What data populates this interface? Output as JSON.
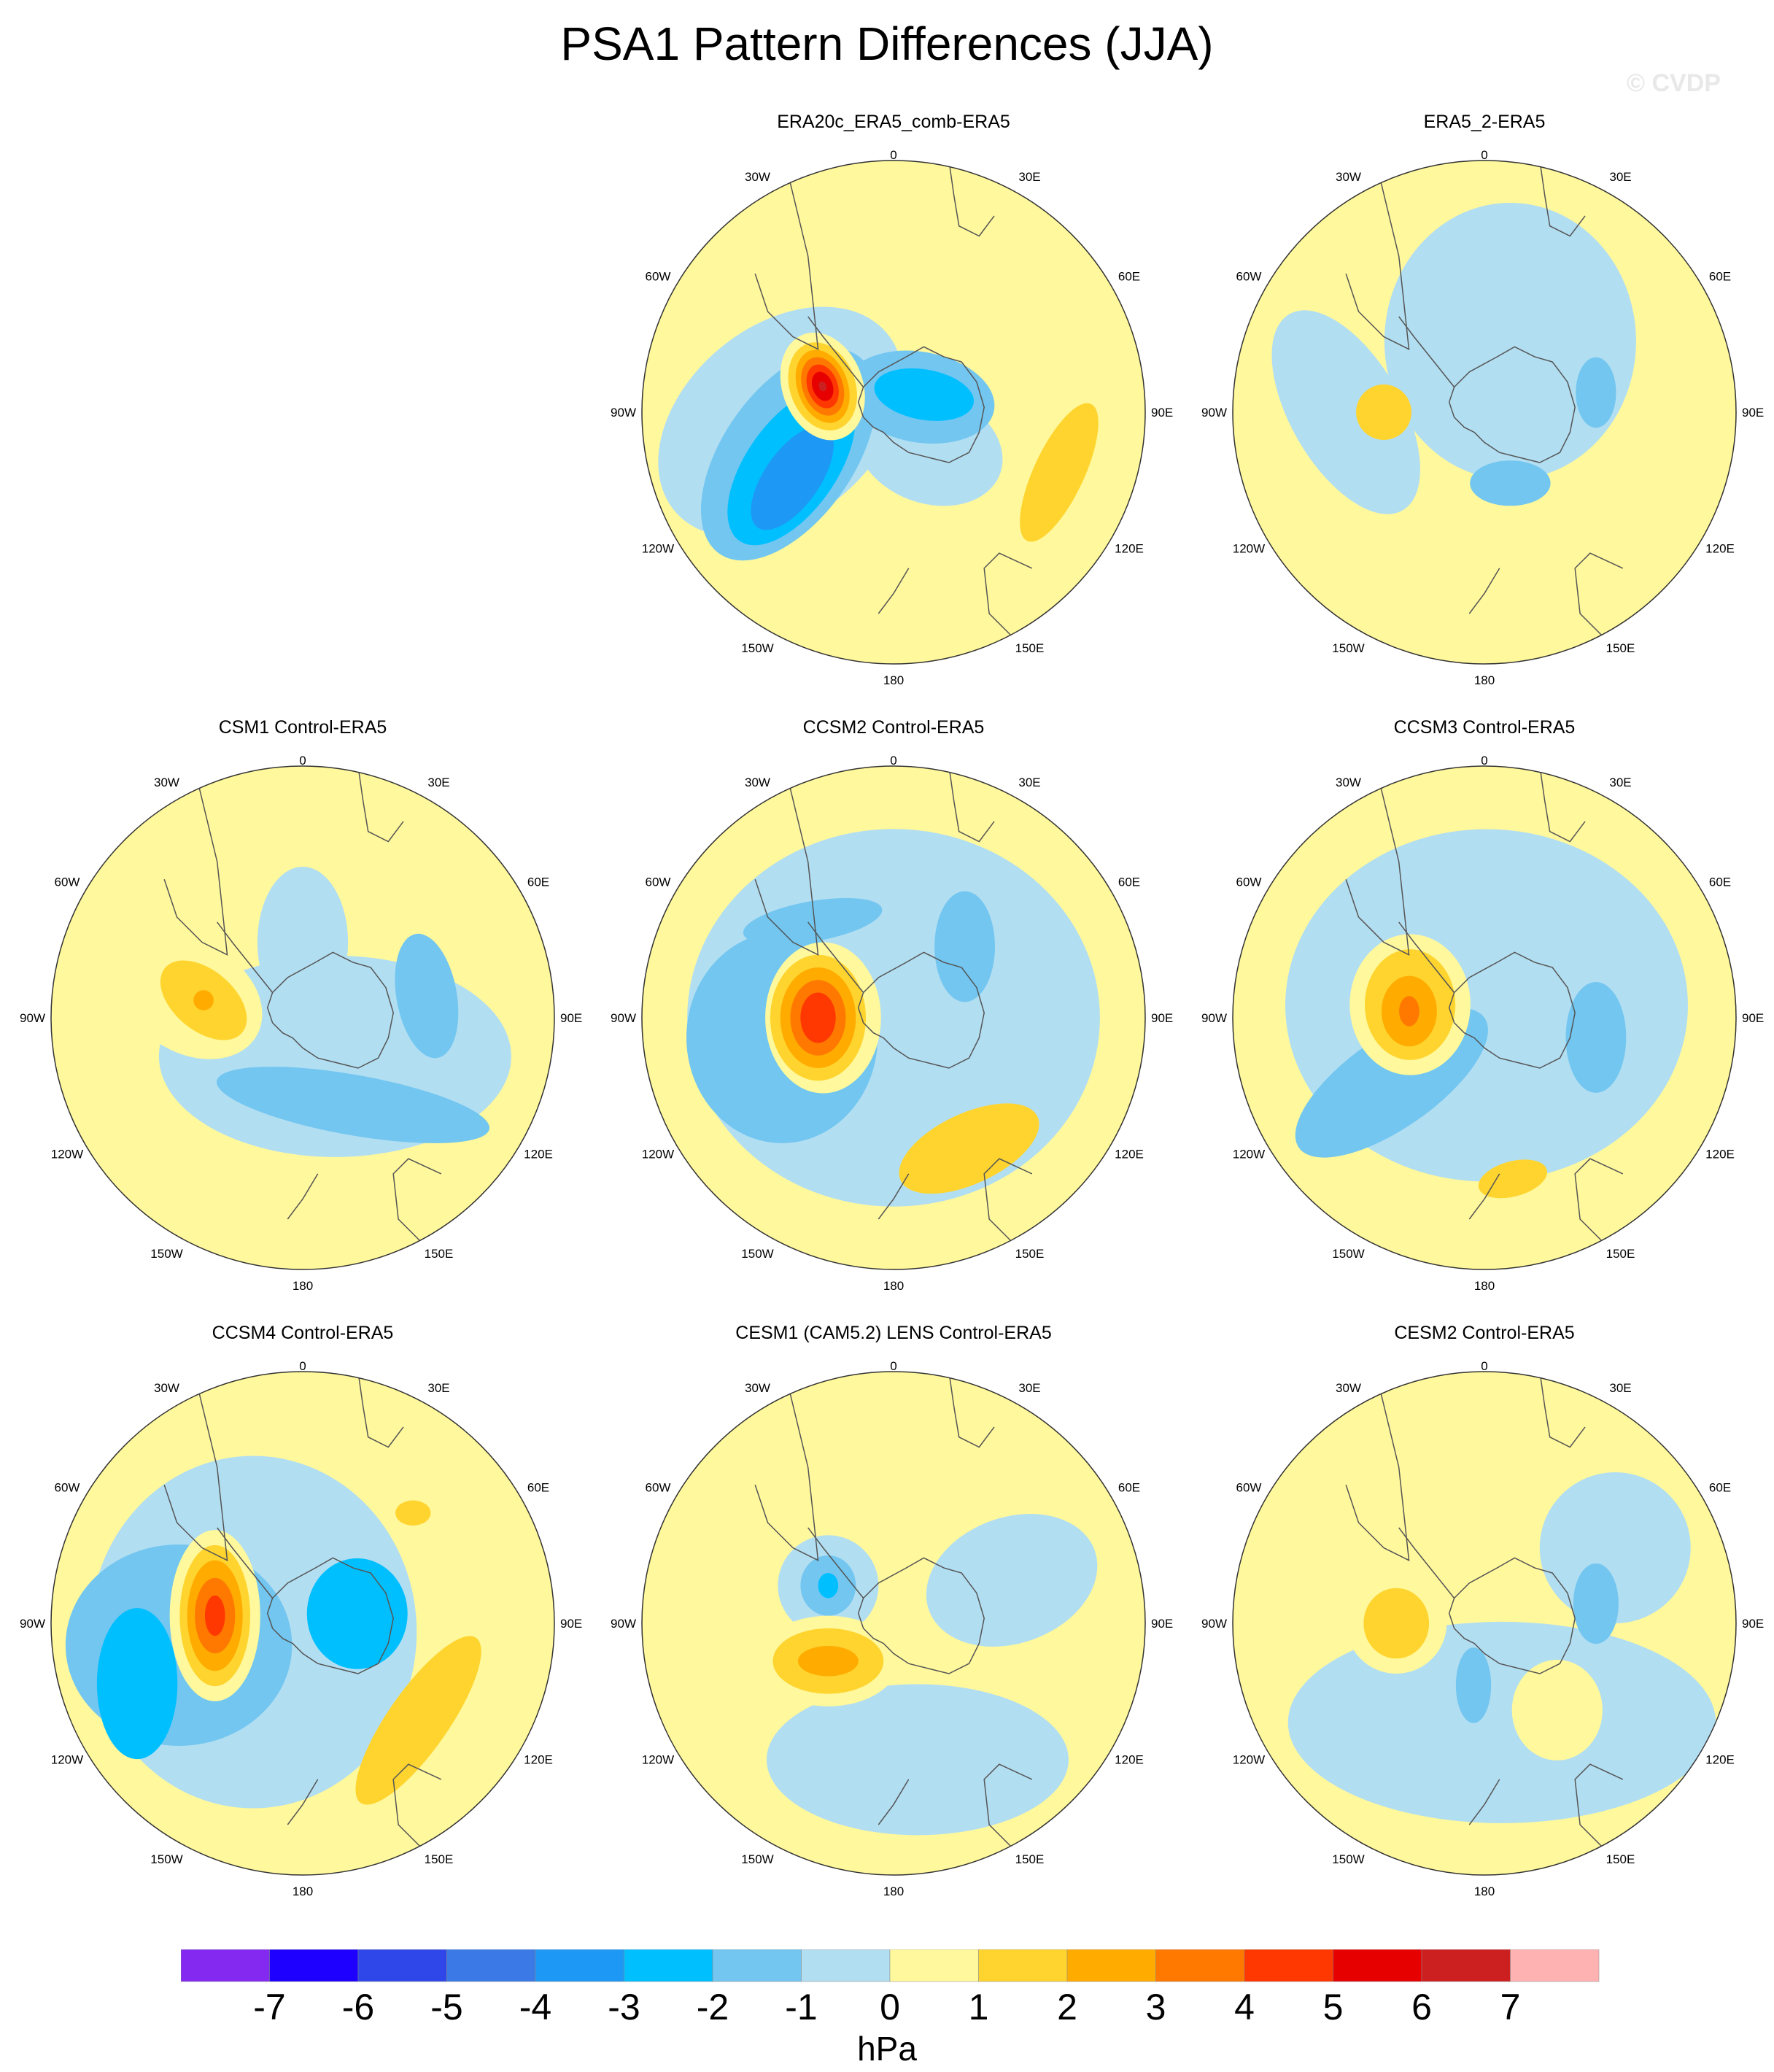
{
  "title": "PSA1 Pattern Differences (JJA)",
  "watermark": "© CVDP",
  "units": "hPa",
  "lon_labels": [
    "0",
    "30E",
    "60E",
    "90E",
    "120E",
    "150E",
    "180",
    "150W",
    "120W",
    "90W",
    "60W",
    "30W"
  ],
  "panels": [
    {
      "name": "panel-era20c-era5-comb",
      "title": "ERA20c_ERA5_comb-ERA5",
      "features": [
        {
          "type": "blob",
          "level": -1,
          "a": -95,
          "r": 0.45,
          "rx": 0.55,
          "ry": 0.38,
          "rot": -40
        },
        {
          "type": "blob",
          "level": -1,
          "a": 135,
          "r": 0.2,
          "rx": 0.3,
          "ry": 0.22,
          "rot": 20
        },
        {
          "type": "blob",
          "level": -2,
          "a": -112,
          "r": 0.45,
          "rx": 0.48,
          "ry": 0.26,
          "rot": -55
        },
        {
          "type": "blob",
          "level": -3,
          "a": -118,
          "r": 0.46,
          "rx": 0.36,
          "ry": 0.18,
          "rot": -55
        },
        {
          "type": "blob",
          "level": -4,
          "a": -123,
          "r": 0.48,
          "rx": 0.24,
          "ry": 0.11,
          "rot": -55
        },
        {
          "type": "blob",
          "level": -2,
          "a": 60,
          "r": 0.12,
          "rx": 0.3,
          "ry": 0.18,
          "rot": 10
        },
        {
          "type": "blob",
          "level": -3,
          "a": 60,
          "r": 0.14,
          "rx": 0.2,
          "ry": 0.1,
          "rot": 10
        },
        {
          "type": "blob",
          "level": 1,
          "a": -70,
          "r": 0.3,
          "rx": 0.22,
          "ry": 0.16,
          "rot": 70
        },
        {
          "type": "blob",
          "level": 2,
          "a": -70,
          "r": 0.3,
          "rx": 0.18,
          "ry": 0.13,
          "rot": 70
        },
        {
          "type": "blob",
          "level": 3,
          "a": -70,
          "r": 0.3,
          "rx": 0.15,
          "ry": 0.1,
          "rot": 70
        },
        {
          "type": "blob",
          "level": 4,
          "a": -70,
          "r": 0.3,
          "rx": 0.12,
          "ry": 0.08,
          "rot": 70
        },
        {
          "type": "blob",
          "level": 5,
          "a": -70,
          "r": 0.3,
          "rx": 0.09,
          "ry": 0.06,
          "rot": 70
        },
        {
          "type": "blob",
          "level": 6,
          "a": -70,
          "r": 0.3,
          "rx": 0.06,
          "ry": 0.04,
          "rot": 70
        },
        {
          "type": "blob",
          "level": 7,
          "a": -70,
          "r": 0.3,
          "rx": 0.02,
          "ry": 0.015,
          "rot": 70
        },
        {
          "type": "blob",
          "level": 2,
          "a": 110,
          "r": 0.7,
          "rx": 0.3,
          "ry": 0.1,
          "rot": -65
        }
      ]
    },
    {
      "name": "panel-era5-2",
      "title": "ERA5_2-ERA5",
      "features": [
        {
          "type": "blob",
          "level": -1,
          "a": 20,
          "r": 0.3,
          "rx": 0.5,
          "ry": 0.55,
          "rot": 0
        },
        {
          "type": "blob",
          "level": -1,
          "a": -90,
          "r": 0.55,
          "rx": 0.45,
          "ry": 0.22,
          "rot": 60
        },
        {
          "type": "blob",
          "level": -2,
          "a": 80,
          "r": 0.45,
          "rx": 0.08,
          "ry": 0.14,
          "rot": 0
        },
        {
          "type": "blob",
          "level": -2,
          "a": 160,
          "r": 0.3,
          "rx": 0.16,
          "ry": 0.09,
          "rot": 0
        },
        {
          "type": "blob",
          "level": 2,
          "a": -90,
          "r": 0.4,
          "rx": 0.11,
          "ry": 0.11,
          "rot": 0
        }
      ]
    },
    {
      "name": "panel-csm1",
      "title": "CSM1 Control-ERA5",
      "features": [
        {
          "type": "blob",
          "level": -1,
          "a": 140,
          "r": 0.2,
          "rx": 0.7,
          "ry": 0.4,
          "rot": 0
        },
        {
          "type": "blob",
          "level": -1,
          "a": 0,
          "r": 0.3,
          "rx": 0.18,
          "ry": 0.3,
          "rot": 0
        },
        {
          "type": "blob",
          "level": -2,
          "a": 150,
          "r": 0.4,
          "rx": 0.55,
          "ry": 0.12,
          "rot": 10
        },
        {
          "type": "blob",
          "level": -2,
          "a": 80,
          "r": 0.5,
          "rx": 0.12,
          "ry": 0.25,
          "rot": -10
        },
        {
          "type": "blob",
          "level": 1,
          "a": -80,
          "r": 0.45,
          "rx": 0.3,
          "ry": 0.22,
          "rot": 30
        },
        {
          "type": "blob",
          "level": 2,
          "a": -80,
          "r": 0.4,
          "rx": 0.2,
          "ry": 0.12,
          "rot": 40
        },
        {
          "type": "blob",
          "level": 3,
          "a": -80,
          "r": 0.4,
          "rx": 0.04,
          "ry": 0.04,
          "rot": 0
        }
      ]
    },
    {
      "name": "panel-ccsm2",
      "title": "CCSM2 Control-ERA5",
      "features": [
        {
          "type": "blob",
          "level": -1,
          "a": 0,
          "r": 0.0,
          "rx": 0.82,
          "ry": 0.75,
          "rot": 0
        },
        {
          "type": "blob",
          "level": -2,
          "a": -100,
          "r": 0.45,
          "rx": 0.38,
          "ry": 0.42,
          "rot": 0
        },
        {
          "type": "blob",
          "level": -2,
          "a": 45,
          "r": 0.4,
          "rx": 0.12,
          "ry": 0.22,
          "rot": 0
        },
        {
          "type": "blob",
          "level": -2,
          "a": -40,
          "r": 0.5,
          "rx": 0.28,
          "ry": 0.08,
          "rot": -10
        },
        {
          "type": "blob",
          "level": 1,
          "a": -90,
          "r": 0.28,
          "rx": 0.23,
          "ry": 0.3,
          "rot": 0
        },
        {
          "type": "blob",
          "level": 2,
          "a": -90,
          "r": 0.3,
          "rx": 0.19,
          "ry": 0.25,
          "rot": 0
        },
        {
          "type": "blob",
          "level": 3,
          "a": -90,
          "r": 0.3,
          "rx": 0.15,
          "ry": 0.2,
          "rot": 0
        },
        {
          "type": "blob",
          "level": 4,
          "a": -90,
          "r": 0.3,
          "rx": 0.11,
          "ry": 0.15,
          "rot": 0
        },
        {
          "type": "blob",
          "level": 5,
          "a": -90,
          "r": 0.3,
          "rx": 0.07,
          "ry": 0.1,
          "rot": 0
        },
        {
          "type": "blob",
          "level": 2,
          "a": 150,
          "r": 0.6,
          "rx": 0.3,
          "ry": 0.14,
          "rot": -25
        }
      ]
    },
    {
      "name": "panel-ccsm3",
      "title": "CCSM3 Control-ERA5",
      "features": [
        {
          "type": "blob",
          "level": -1,
          "a": 10,
          "r": 0.05,
          "rx": 0.8,
          "ry": 0.7,
          "rot": 0
        },
        {
          "type": "blob",
          "level": -2,
          "a": -125,
          "r": 0.45,
          "rx": 0.45,
          "ry": 0.18,
          "rot": -35
        },
        {
          "type": "blob",
          "level": -2,
          "a": 100,
          "r": 0.45,
          "rx": 0.12,
          "ry": 0.22,
          "rot": 0
        },
        {
          "type": "blob",
          "level": 1,
          "a": -80,
          "r": 0.3,
          "rx": 0.24,
          "ry": 0.28,
          "rot": 0
        },
        {
          "type": "blob",
          "level": 2,
          "a": -80,
          "r": 0.3,
          "rx": 0.18,
          "ry": 0.22,
          "rot": 0
        },
        {
          "type": "blob",
          "level": 3,
          "a": -85,
          "r": 0.3,
          "rx": 0.11,
          "ry": 0.14,
          "rot": 0
        },
        {
          "type": "blob",
          "level": 4,
          "a": -85,
          "r": 0.3,
          "rx": 0.04,
          "ry": 0.06,
          "rot": 0
        },
        {
          "type": "blob",
          "level": 2,
          "a": 170,
          "r": 0.65,
          "rx": 0.14,
          "ry": 0.07,
          "rot": -15
        }
      ]
    },
    {
      "name": "panel-ccsm4",
      "title": "CCSM4 Control-ERA5",
      "features": [
        {
          "type": "blob",
          "level": -1,
          "a": -100,
          "r": 0.2,
          "rx": 0.65,
          "ry": 0.7,
          "rot": 0
        },
        {
          "type": "blob",
          "level": -2,
          "a": -100,
          "r": 0.5,
          "rx": 0.45,
          "ry": 0.4,
          "rot": 0
        },
        {
          "type": "blob",
          "level": -3,
          "a": -110,
          "r": 0.7,
          "rx": 0.16,
          "ry": 0.3,
          "rot": 0
        },
        {
          "type": "blob",
          "level": -3,
          "a": 80,
          "r": 0.22,
          "rx": 0.2,
          "ry": 0.22,
          "rot": 0
        },
        {
          "type": "blob",
          "level": 1,
          "a": -85,
          "r": 0.35,
          "rx": 0.18,
          "ry": 0.34,
          "rot": 0
        },
        {
          "type": "blob",
          "level": 2,
          "a": -85,
          "r": 0.35,
          "rx": 0.14,
          "ry": 0.28,
          "rot": 0
        },
        {
          "type": "blob",
          "level": 3,
          "a": -85,
          "r": 0.35,
          "rx": 0.11,
          "ry": 0.22,
          "rot": 0
        },
        {
          "type": "blob",
          "level": 4,
          "a": -85,
          "r": 0.35,
          "rx": 0.08,
          "ry": 0.15,
          "rot": 0
        },
        {
          "type": "blob",
          "level": 5,
          "a": -85,
          "r": 0.35,
          "rx": 0.04,
          "ry": 0.08,
          "rot": 0
        },
        {
          "type": "blob",
          "level": 2,
          "a": 130,
          "r": 0.6,
          "rx": 0.4,
          "ry": 0.12,
          "rot": -55
        },
        {
          "type": "blob",
          "level": 2,
          "a": 45,
          "r": 0.62,
          "rx": 0.07,
          "ry": 0.05,
          "rot": 0
        }
      ]
    },
    {
      "name": "panel-cesm1-lens",
      "title": "CESM1 (CAM5.2) LENS Control-ERA5",
      "features": [
        {
          "type": "blob",
          "level": -1,
          "a": 170,
          "r": 0.55,
          "rx": 0.6,
          "ry": 0.3,
          "rot": 0
        },
        {
          "type": "blob",
          "level": -1,
          "a": 70,
          "r": 0.5,
          "rx": 0.35,
          "ry": 0.25,
          "rot": -20
        },
        {
          "type": "blob",
          "level": -1,
          "a": -60,
          "r": 0.3,
          "rx": 0.2,
          "ry": 0.2,
          "rot": 0
        },
        {
          "type": "blob",
          "level": -2,
          "a": -60,
          "r": 0.3,
          "rx": 0.11,
          "ry": 0.12,
          "rot": 0
        },
        {
          "type": "blob",
          "level": -3,
          "a": -60,
          "r": 0.3,
          "rx": 0.04,
          "ry": 0.05,
          "rot": 0
        },
        {
          "type": "blob",
          "level": 1,
          "a": -120,
          "r": 0.3,
          "rx": 0.28,
          "ry": 0.18,
          "rot": 0
        },
        {
          "type": "blob",
          "level": 2,
          "a": -120,
          "r": 0.3,
          "rx": 0.22,
          "ry": 0.13,
          "rot": 0
        },
        {
          "type": "blob",
          "level": 3,
          "a": -120,
          "r": 0.3,
          "rx": 0.12,
          "ry": 0.06,
          "rot": 0
        }
      ]
    },
    {
      "name": "panel-cesm2",
      "title": "CESM2 Control-ERA5",
      "features": [
        {
          "type": "blob",
          "level": -1,
          "a": 170,
          "r": 0.4,
          "rx": 0.85,
          "ry": 0.4,
          "rot": 0
        },
        {
          "type": "blob",
          "level": -1,
          "a": 60,
          "r": 0.6,
          "rx": 0.3,
          "ry": 0.3,
          "rot": 0
        },
        {
          "type": "blob",
          "level": -2,
          "a": 80,
          "r": 0.45,
          "rx": 0.09,
          "ry": 0.16,
          "rot": 0
        },
        {
          "type": "blob",
          "level": -2,
          "a": -170,
          "r": 0.25,
          "rx": 0.07,
          "ry": 0.15,
          "rot": 0
        },
        {
          "type": "blob",
          "level": 1,
          "a": -90,
          "r": 0.35,
          "rx": 0.2,
          "ry": 0.2,
          "rot": 0
        },
        {
          "type": "blob",
          "level": 2,
          "a": -90,
          "r": 0.35,
          "rx": 0.13,
          "ry": 0.14,
          "rot": 0
        },
        {
          "type": "blob",
          "level": 1,
          "a": 140,
          "r": 0.45,
          "rx": 0.18,
          "ry": 0.2,
          "rot": 0
        }
      ]
    }
  ],
  "colorbar": {
    "labels": [
      "-7",
      "-6",
      "-5",
      "-4",
      "-3",
      "-2",
      "-1",
      "0",
      "1",
      "2",
      "3",
      "4",
      "5",
      "6",
      "7"
    ],
    "colors": [
      "#8429f0",
      "#1d00ff",
      "#2f47e8",
      "#3b7ae6",
      "#1e98f5",
      "#00bfff",
      "#72c6f0",
      "#b2def2",
      "#fff89c",
      "#ffd42e",
      "#ffab00",
      "#ff7800",
      "#ff3700",
      "#e60000",
      "#cc2020",
      "#ffb2b2"
    ]
  }
}
